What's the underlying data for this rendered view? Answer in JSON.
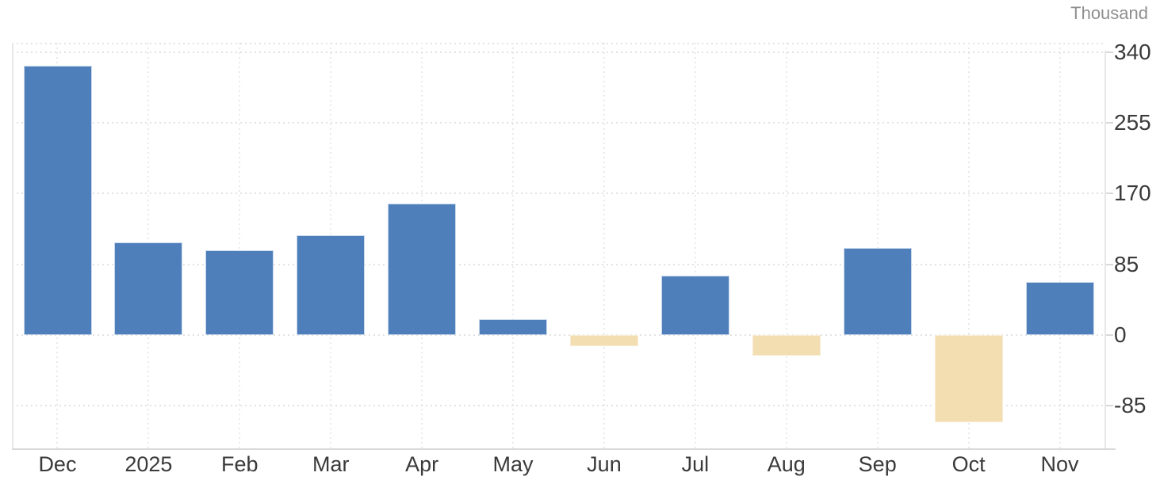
{
  "chart_data": {
    "type": "bar",
    "unit_label": "Thousand",
    "categories": [
      "Dec",
      "2025",
      "Feb",
      "Mar",
      "Apr",
      "May",
      "Jun",
      "Jul",
      "Aug",
      "Sep",
      "Oct",
      "Nov"
    ],
    "values": [
      323,
      111,
      102,
      120,
      158,
      19,
      -13,
      71,
      -25,
      105,
      -105,
      64
    ],
    "y_ticks": [
      340,
      255,
      170,
      85,
      0,
      -85
    ],
    "ylim": [
      -138,
      351
    ],
    "grid": "dotted",
    "legend": "none",
    "colors": {
      "positive": "#4e7fbb",
      "positive_border": "#c9d9ec",
      "negative": "#f3deb1",
      "negative_border": "#f8ecd3",
      "gridline_h": "#e2e2e2",
      "gridline_v": "#eaeaea",
      "axis_line": "#d9d9d9",
      "plot_border": "#e7e7e7",
      "tick_label": "#3a3a3a",
      "unit_label": "#8f8f8f"
    }
  }
}
